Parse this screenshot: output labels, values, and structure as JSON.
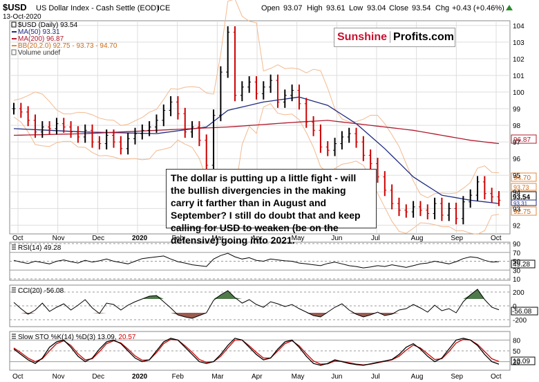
{
  "header": {
    "symbol": "$USD",
    "name": "US Dollar Index - Cash Settle (EOD)",
    "exchange": "ICE",
    "date": "13-Oct-2020",
    "open_label": "Open",
    "open": "93.07",
    "high_label": "High",
    "high": "93.61",
    "low_label": "Low",
    "low": "93.04",
    "close_label": "Close",
    "close": "93.54",
    "chg_label": "Chg",
    "chg": "+0.43 (+0.46%)",
    "chg_icon": "up-triangle-icon"
  },
  "legend": {
    "price": "$USD (Daily) 93.54",
    "ma50": "MA(50) 93.31",
    "ma200": "MA(200) 96.87",
    "bb": "BB(20,2.0) 92.75 - 93.73 - 94.70",
    "volume": "Volume undef"
  },
  "brand": {
    "part1": "Sunshine",
    "part2": "Profits.com"
  },
  "annotation": "The dollar is putting up a little fight - will the bullish divergencies in the making carry it farther than in August and September? I still do doubt that and keep calling for USD to weaken (be on the defensive) going into 2021.",
  "price_tags": {
    "ma200": "96.87",
    "bb_upper": "94.70",
    "bb_mid": "93.73",
    "close": "93.54",
    "ma50": "93.31",
    "bb_lower": "92.75"
  },
  "rsi": {
    "label": "RSI(14) 49.28",
    "value_tag": "49.28",
    "ticks": [
      "90",
      "70",
      "50",
      "30",
      "10"
    ]
  },
  "cci": {
    "label": "CCI(20) -56.08",
    "value_tag": "-56.08",
    "ticks": [
      "200",
      "0",
      "-200"
    ]
  },
  "sto": {
    "label_main": "Slow STO %K(14) %D(3) 13.09,",
    "label_d": "20.57",
    "value_tag": "13.09",
    "ticks": [
      "80",
      "50",
      "20"
    ]
  },
  "colors": {
    "price_bar": "#000000",
    "down_bar": "#cc0000",
    "ma50": "#1f2a80",
    "ma200": "#b0192d",
    "bb": "#f3b98e",
    "positive_fill": "#4f7a4a",
    "negative_fill": "#9b5b4f",
    "grid": "#dddddd"
  },
  "chart_data": [
    {
      "type": "line",
      "title": "$USD US Dollar Index - Cash Settle (EOD) ICE",
      "x_axis": [
        "Oct",
        "Nov",
        "Dec",
        "2020",
        "Feb",
        "Mar",
        "Apr",
        "May",
        "Jun",
        "Jul",
        "Aug",
        "Sep",
        "Oct"
      ],
      "y_ticks": [
        104,
        103,
        102,
        101,
        100,
        99,
        98,
        97,
        96,
        95,
        94,
        93,
        92
      ],
      "ylim": [
        91.6,
        104.2
      ],
      "grid": true,
      "series": [
        {
          "name": "$USD (Daily)",
          "kind": "ohlc",
          "x": [
            0,
            1,
            2,
            3,
            4,
            5,
            6,
            7,
            8,
            9,
            10,
            11,
            12,
            13,
            14,
            15,
            16,
            17,
            18,
            19,
            20,
            21,
            22,
            23,
            24,
            25,
            26,
            27,
            28,
            29,
            30,
            31,
            32,
            33,
            34,
            35,
            36,
            37,
            38,
            39,
            40,
            41,
            42,
            43,
            44,
            45,
            46,
            47,
            48,
            49,
            50,
            51,
            52,
            53,
            54,
            55,
            56,
            57,
            58,
            59,
            60,
            61,
            62,
            63,
            64,
            65,
            66,
            67,
            68
          ],
          "values": [
            99.0,
            98.8,
            98.3,
            97.6,
            97.9,
            97.8,
            98.1,
            97.9,
            97.6,
            97.3,
            97.7,
            97.0,
            96.9,
            97.4,
            97.0,
            96.6,
            97.2,
            97.5,
            97.7,
            97.9,
            98.3,
            98.9,
            99.4,
            98.7,
            97.6,
            97.9,
            97.1,
            95.6,
            98.6,
            101.2,
            103.6,
            99.8,
            100.3,
            100.6,
            99.9,
            100.3,
            100.7,
            99.4,
            99.8,
            100.1,
            99.3,
            98.2,
            97.7,
            96.7,
            96.5,
            96.9,
            97.3,
            97.5,
            97.0,
            96.2,
            95.7,
            94.9,
            94.1,
            93.3,
            92.9,
            92.8,
            93.1,
            92.9,
            92.7,
            93.3,
            92.6,
            93.0,
            92.4,
            93.4,
            93.8,
            94.6,
            93.9,
            93.7,
            93.5
          ]
        },
        {
          "name": "MA(50)",
          "x": [
            0,
            10,
            20,
            27,
            30,
            35,
            40,
            44,
            48,
            52,
            56,
            60,
            64,
            68
          ],
          "values": [
            97.8,
            97.6,
            97.5,
            97.9,
            98.9,
            99.4,
            99.7,
            99.2,
            98.1,
            96.6,
            94.9,
            93.8,
            93.5,
            93.3
          ]
        },
        {
          "name": "MA(200)",
          "x": [
            0,
            10,
            20,
            30,
            40,
            44,
            48,
            52,
            56,
            60,
            64,
            68
          ],
          "values": [
            97.4,
            97.5,
            97.7,
            97.9,
            98.2,
            98.3,
            98.1,
            97.9,
            97.7,
            97.4,
            97.1,
            96.9
          ]
        }
      ]
    },
    {
      "type": "line",
      "title": "RSI(14) 49.28",
      "ylim": [
        10,
        90
      ],
      "y_ticks": [
        90,
        70,
        50,
        30,
        10
      ],
      "series": [
        {
          "name": "RSI(14)",
          "values": [
            52,
            48,
            45,
            50,
            47,
            44,
            50,
            53,
            49,
            46,
            52,
            48,
            51,
            55,
            50,
            47,
            44,
            50,
            56,
            58,
            60,
            62,
            55,
            49,
            46,
            42,
            40,
            38,
            55,
            63,
            68,
            60,
            55,
            58,
            52,
            50,
            55,
            53,
            51,
            50,
            46,
            44,
            42,
            40,
            45,
            48,
            44,
            40,
            38,
            35,
            37,
            40,
            38,
            42,
            39,
            36,
            40,
            44,
            46,
            50,
            47,
            44,
            49,
            56,
            60,
            58,
            52,
            48,
            49
          ]
        }
      ]
    },
    {
      "type": "line",
      "title": "CCI(20) -56.08",
      "ylim": [
        -280,
        280
      ],
      "y_ticks": [
        200,
        0,
        -200
      ],
      "series": [
        {
          "name": "CCI(20)",
          "values": [
            50,
            -40,
            -120,
            -60,
            40,
            -80,
            -20,
            30,
            -60,
            10,
            90,
            -30,
            -110,
            40,
            20,
            -60,
            10,
            60,
            100,
            140,
            150,
            60,
            -30,
            -130,
            -160,
            -180,
            -140,
            -100,
            80,
            160,
            220,
            120,
            40,
            90,
            20,
            -20,
            60,
            30,
            -10,
            20,
            -40,
            -90,
            -140,
            -160,
            -90,
            -20,
            30,
            -60,
            -120,
            -160,
            -130,
            -90,
            -140,
            -120,
            -60,
            -40,
            20,
            -30,
            -90,
            10,
            -70,
            -40,
            -100,
            60,
            160,
            240,
            90,
            -20,
            -56
          ]
        }
      ]
    },
    {
      "type": "line",
      "title": "Slow STO %K(14) %D(3) 13.09, 20.57",
      "ylim": [
        0,
        100
      ],
      "y_ticks": [
        80,
        50,
        20
      ],
      "series": [
        {
          "name": "%K",
          "values": [
            55,
            40,
            25,
            15,
            30,
            60,
            75,
            80,
            60,
            35,
            20,
            30,
            55,
            75,
            80,
            70,
            50,
            30,
            20,
            25,
            50,
            75,
            85,
            80,
            60,
            40,
            20,
            15,
            20,
            40,
            65,
            85,
            80,
            60,
            40,
            25,
            30,
            55,
            75,
            80,
            60,
            35,
            15,
            10,
            15,
            25,
            20,
            15,
            12,
            10,
            14,
            18,
            22,
            26,
            40,
            60,
            70,
            55,
            35,
            20,
            30,
            55,
            80,
            85,
            80,
            65,
            40,
            20,
            13
          ]
        },
        {
          "name": "%D",
          "values": [
            58,
            45,
            30,
            20,
            28,
            50,
            70,
            78,
            65,
            42,
            25,
            28,
            48,
            70,
            78,
            72,
            55,
            36,
            24,
            25,
            45,
            70,
            82,
            80,
            64,
            46,
            26,
            18,
            20,
            35,
            58,
            80,
            80,
            64,
            46,
            30,
            30,
            50,
            70,
            78,
            64,
            42,
            22,
            13,
            14,
            22,
            21,
            17,
            13,
            11,
            13,
            17,
            21,
            25,
            35,
            52,
            66,
            58,
            42,
            26,
            28,
            48,
            72,
            82,
            80,
            68,
            48,
            28,
            20.57
          ]
        }
      ]
    }
  ]
}
